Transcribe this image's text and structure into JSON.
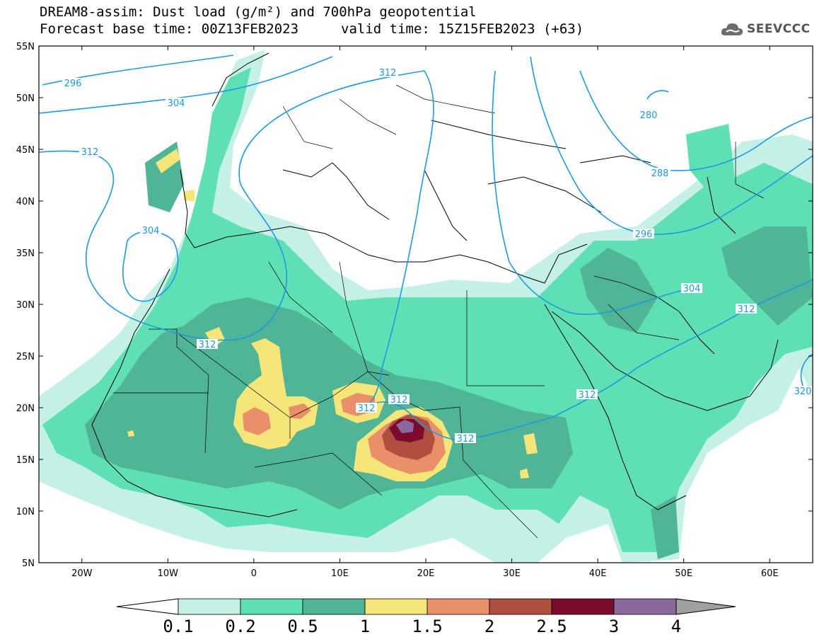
{
  "title": {
    "line1": "DREAM8-assim: Dust load (g/m²) and 700hPa geopotential",
    "line2a": "Forecast base time: 00Z13FEB2023",
    "line2b": "valid time: 15Z15FEB2023 (+63)"
  },
  "logo": {
    "icon": "cloud-icon",
    "text": "SEEVCCC"
  },
  "map": {
    "lat_range": [
      5,
      55
    ],
    "lon_range": [
      -25,
      65
    ],
    "lat_ticks": [
      "55N",
      "50N",
      "45N",
      "40N",
      "35N",
      "30N",
      "25N",
      "20N",
      "15N",
      "10N",
      "5N"
    ],
    "lon_ticks": [
      "20W",
      "10W",
      "0",
      "10E",
      "20E",
      "30E",
      "40E",
      "50E",
      "60E"
    ],
    "contour_labels": [
      "296",
      "304",
      "312",
      "304",
      "312",
      "312",
      "312",
      "312",
      "312",
      "312",
      "280",
      "288",
      "296",
      "304",
      "312",
      "320"
    ]
  },
  "colorbar": {
    "labels": [
      "0.1",
      "0.2",
      "0.5",
      "1",
      "1.5",
      "2",
      "2.5",
      "3",
      "4"
    ],
    "colors": [
      "#c5f0e8",
      "#5fdfb4",
      "#4fb596",
      "#f5e67a",
      "#e9906a",
      "#b04e40",
      "#7c0a2c",
      "#8a6a9e",
      "#a0a0a0"
    ]
  },
  "colors": {
    "contour": "#1a9be0",
    "dust_light": "#c5f0e8",
    "dust_mid": "#5fdfb4",
    "dust_dark": "#4fb596",
    "dust_yellow": "#f5e67a",
    "dust_orange": "#e9906a",
    "dust_red": "#b04e40",
    "dust_maroon": "#7c0a2c",
    "dust_purple": "#8a6a9e"
  }
}
